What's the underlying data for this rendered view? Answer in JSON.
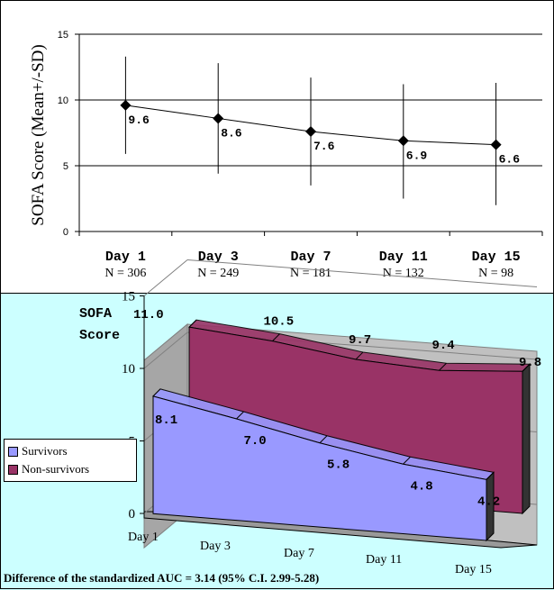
{
  "chart_data": [
    {
      "type": "line",
      "ylabel": "SOFA Score (Mean+/-SD)",
      "ylim": [
        0,
        15
      ],
      "yticks": [
        0,
        5,
        10,
        15
      ],
      "grid": true,
      "categories": [
        "Day 1",
        "Day 3",
        "Day 7",
        "Day 11",
        "Day 15"
      ],
      "sublabels": [
        "N = 306",
        "N = 249",
        "N = 181",
        "N = 132",
        "N = 98"
      ],
      "series": [
        {
          "values": [
            9.6,
            8.6,
            7.6,
            6.9,
            6.6
          ],
          "data_labels": [
            "9.6",
            "8.6",
            "7.6",
            "6.9",
            "6.6"
          ],
          "error_low": [
            5.9,
            4.4,
            3.5,
            2.5,
            2.0
          ],
          "error_high": [
            13.3,
            12.8,
            11.7,
            11.2,
            11.3
          ],
          "color": "#000000"
        }
      ]
    },
    {
      "type": "area",
      "ylabel": "SOFA Score",
      "ylabel_lines": [
        "SOFA",
        "Score"
      ],
      "ylim": [
        0,
        15
      ],
      "yticks": [
        0,
        5,
        10,
        15
      ],
      "categories": [
        "Day 1",
        "Day 3",
        "Day 7",
        "Day 11",
        "Day 15"
      ],
      "legend_position": "left",
      "series": [
        {
          "name": "Survivors",
          "values": [
            8.1,
            7.0,
            5.8,
            4.8,
            4.2
          ],
          "data_labels": [
            "8.1",
            "7.0",
            "5.8",
            "4.8",
            "4.2"
          ],
          "color": "#9999ff"
        },
        {
          "name": "Non-survivors",
          "values": [
            11.0,
            10.5,
            9.7,
            9.4,
            9.8
          ],
          "data_labels": [
            "11.0",
            "10.5",
            "9.7",
            "9.4",
            "9.8"
          ],
          "color": "#993366"
        }
      ],
      "annotation": "Difference of the standardized AUC = 3.14 (95% C.I. 2.99-5.28)"
    }
  ]
}
